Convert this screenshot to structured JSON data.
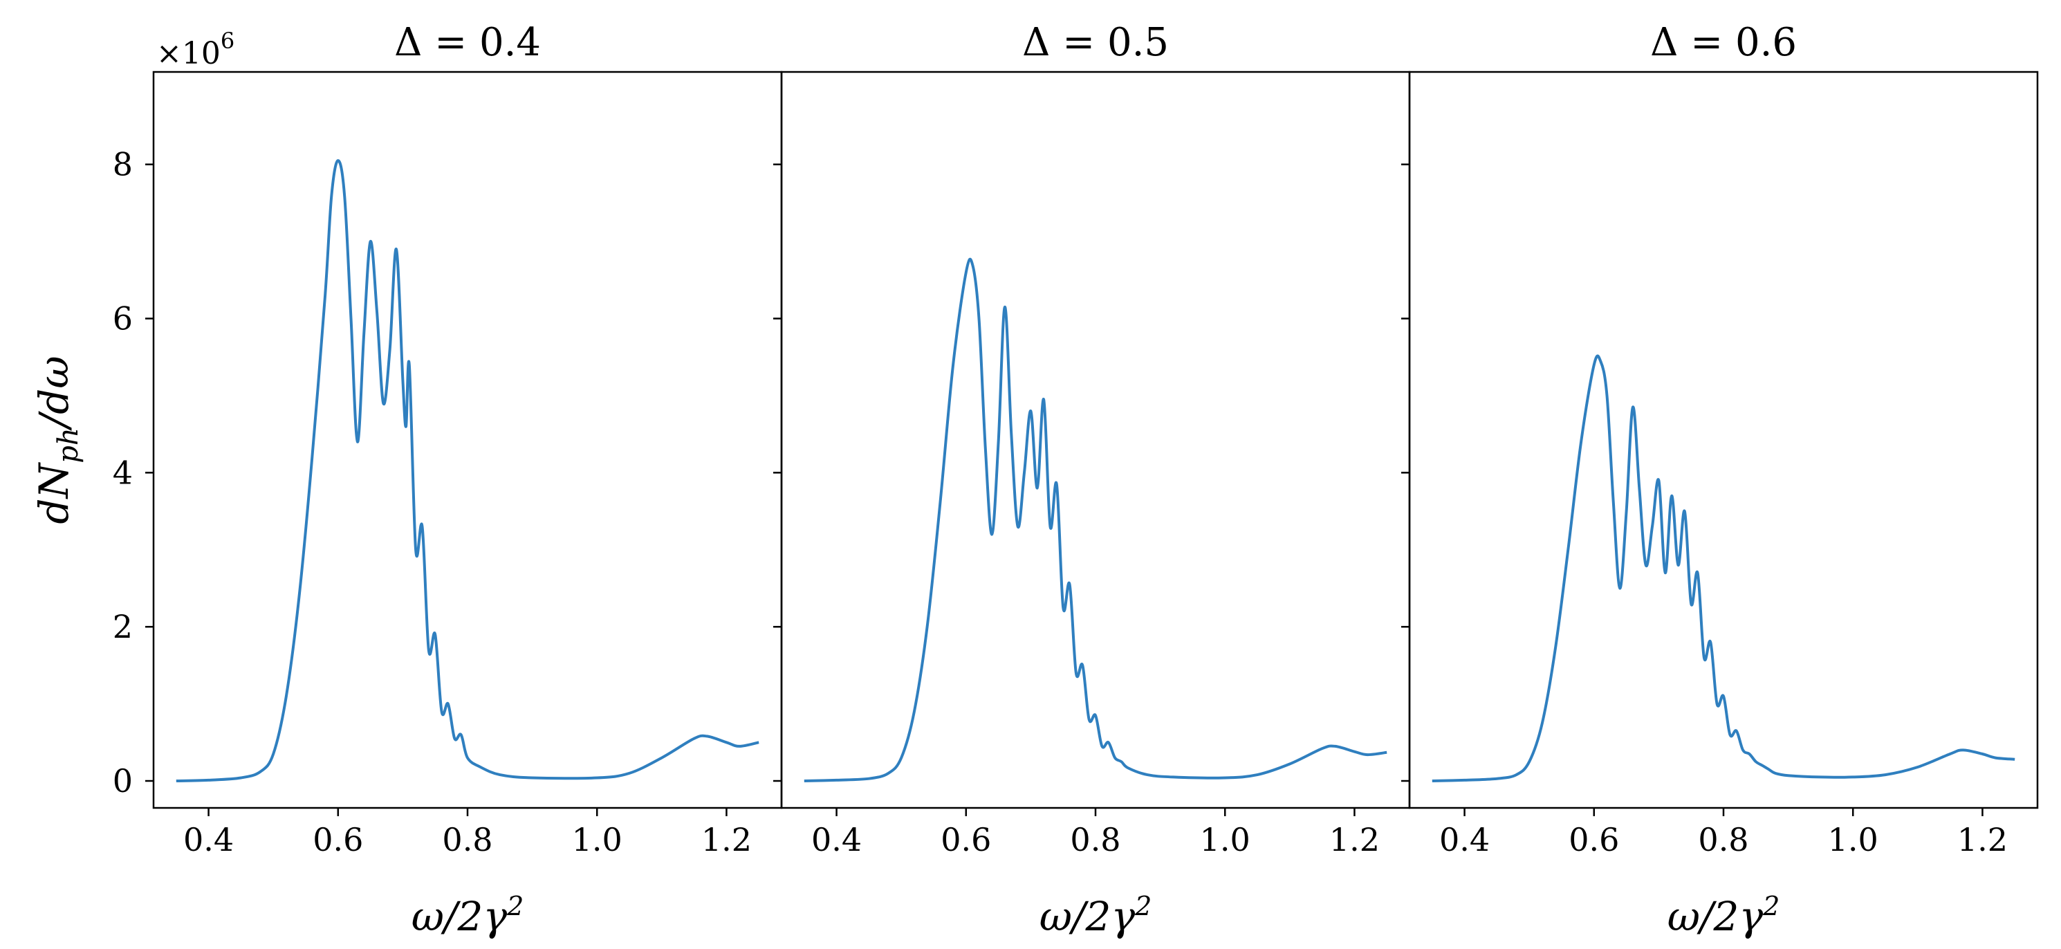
{
  "chart_data": {
    "type": "line",
    "line_color": "#2f7fbf",
    "sharey": true,
    "ylabel": "dN_ph/dω",
    "ylabel_parts": {
      "main": "dN",
      "sub": "ph",
      "tail": "/dω"
    },
    "xlabel": "ω/2γ²",
    "xlabel_parts": {
      "main": "ω/2γ",
      "sup": "2"
    },
    "y_offset_label": {
      "base": "×10",
      "exp": "6"
    },
    "ylim": [
      -0.35,
      9.2
    ],
    "xlim": [
      0.315,
      1.285
    ],
    "xticks": [
      0.4,
      0.6,
      0.8,
      1.0,
      1.2
    ],
    "xtick_labels": [
      "0.4",
      "0.6",
      "0.8",
      "1.0",
      "1.2"
    ],
    "yticks": [
      0,
      2,
      4,
      6,
      8
    ],
    "ytick_labels": [
      "0",
      "2",
      "4",
      "6",
      "8"
    ],
    "panels": [
      {
        "title": "Δ = 0.4",
        "series": [
          {
            "x": [
              0.35,
              0.4,
              0.45,
              0.48,
              0.5,
              0.52,
              0.54,
              0.56,
              0.58,
              0.59,
              0.6,
              0.61,
              0.62,
              0.63,
              0.64,
              0.65,
              0.66,
              0.67,
              0.68,
              0.69,
              0.7,
              0.705,
              0.71,
              0.72,
              0.73,
              0.74,
              0.75,
              0.76,
              0.77,
              0.78,
              0.79,
              0.8,
              0.82,
              0.85,
              0.9,
              1.0,
              1.05,
              1.1,
              1.15,
              1.17,
              1.2,
              1.22,
              1.25
            ],
            "y": [
              0,
              0.01,
              0.04,
              0.12,
              0.35,
              1.1,
              2.4,
              4.2,
              6.3,
              7.6,
              8.05,
              7.6,
              6.0,
              4.4,
              5.8,
              7.0,
              6.1,
              4.9,
              5.6,
              6.9,
              5.2,
              4.6,
              5.4,
              3.0,
              3.3,
              1.7,
              1.9,
              0.9,
              1.0,
              0.55,
              0.6,
              0.3,
              0.18,
              0.08,
              0.04,
              0.04,
              0.1,
              0.3,
              0.55,
              0.58,
              0.5,
              0.45,
              0.5
            ]
          }
        ]
      },
      {
        "title": "Δ = 0.5",
        "series": [
          {
            "x": [
              0.35,
              0.4,
              0.45,
              0.48,
              0.5,
              0.52,
              0.54,
              0.56,
              0.58,
              0.6,
              0.61,
              0.62,
              0.63,
              0.64,
              0.65,
              0.66,
              0.67,
              0.68,
              0.69,
              0.7,
              0.71,
              0.72,
              0.73,
              0.74,
              0.75,
              0.76,
              0.77,
              0.78,
              0.79,
              0.8,
              0.81,
              0.82,
              0.83,
              0.84,
              0.85,
              0.88,
              0.92,
              1.0,
              1.05,
              1.1,
              1.15,
              1.17,
              1.2,
              1.22,
              1.25
            ],
            "y": [
              0,
              0.01,
              0.03,
              0.1,
              0.3,
              0.9,
              2.0,
              3.6,
              5.4,
              6.6,
              6.7,
              6.0,
              4.3,
              3.2,
              4.4,
              6.15,
              4.5,
              3.3,
              4.0,
              4.8,
              3.8,
              4.95,
              3.3,
              3.85,
              2.25,
              2.55,
              1.4,
              1.5,
              0.8,
              0.85,
              0.45,
              0.5,
              0.3,
              0.25,
              0.17,
              0.08,
              0.05,
              0.04,
              0.08,
              0.22,
              0.42,
              0.45,
              0.38,
              0.34,
              0.37
            ]
          }
        ]
      },
      {
        "title": "Δ = 0.6",
        "series": [
          {
            "x": [
              0.35,
              0.4,
              0.45,
              0.48,
              0.5,
              0.52,
              0.54,
              0.56,
              0.58,
              0.6,
              0.61,
              0.62,
              0.63,
              0.64,
              0.65,
              0.66,
              0.67,
              0.68,
              0.69,
              0.7,
              0.71,
              0.72,
              0.73,
              0.74,
              0.75,
              0.76,
              0.77,
              0.78,
              0.79,
              0.8,
              0.81,
              0.82,
              0.83,
              0.84,
              0.85,
              0.86,
              0.87,
              0.88,
              0.9,
              0.95,
              1.0,
              1.05,
              1.1,
              1.15,
              1.17,
              1.2,
              1.22,
              1.25
            ],
            "y": [
              0,
              0.01,
              0.03,
              0.08,
              0.25,
              0.75,
              1.7,
              3.0,
              4.4,
              5.4,
              5.45,
              5.0,
              3.6,
              2.5,
              3.5,
              4.85,
              3.8,
              2.8,
              3.3,
              3.9,
              2.7,
              3.7,
              2.8,
              3.5,
              2.3,
              2.7,
              1.6,
              1.8,
              1.0,
              1.1,
              0.6,
              0.65,
              0.4,
              0.35,
              0.25,
              0.2,
              0.15,
              0.1,
              0.07,
              0.05,
              0.05,
              0.08,
              0.18,
              0.35,
              0.4,
              0.35,
              0.3,
              0.28
            ]
          }
        ]
      }
    ]
  }
}
